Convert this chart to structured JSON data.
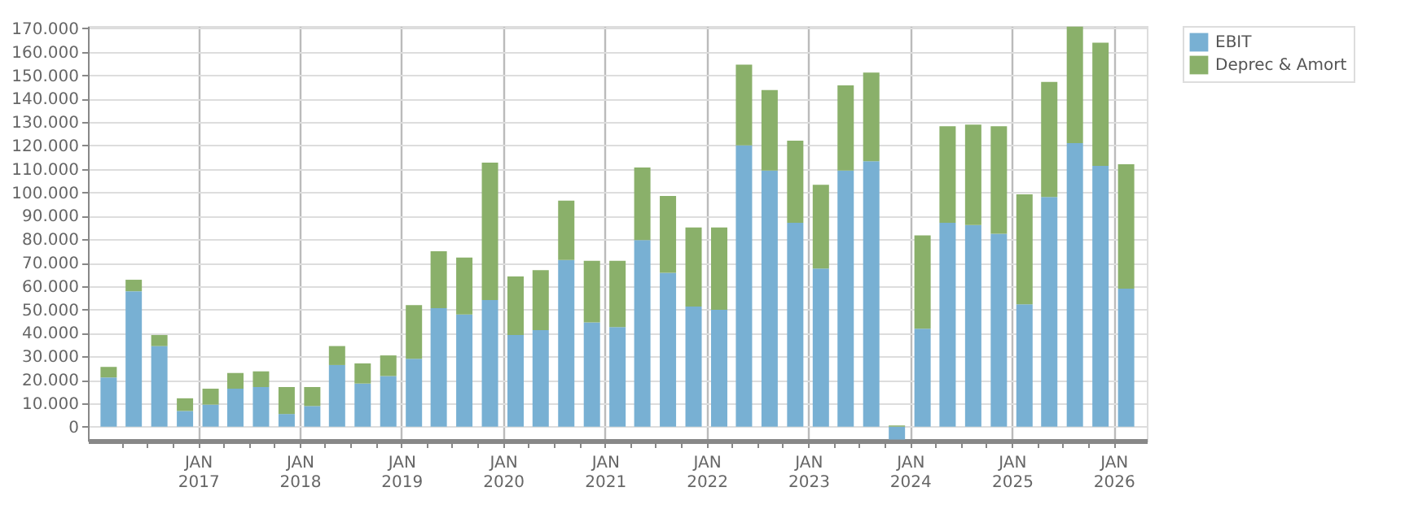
{
  "chart_data": {
    "type": "bar",
    "stacked": true,
    "x": [
      "2016-02-15",
      "2016-05-15",
      "2016-08-15",
      "2016-11-15",
      "2017-02-15",
      "2017-05-15",
      "2017-08-15",
      "2017-11-15",
      "2018-02-15",
      "2018-05-15",
      "2018-08-15",
      "2018-11-15",
      "2019-02-15",
      "2019-05-15",
      "2019-08-15",
      "2019-11-15",
      "2020-02-15",
      "2020-05-15",
      "2020-08-15",
      "2020-11-15",
      "2021-02-15",
      "2021-05-15",
      "2021-08-15",
      "2021-11-15",
      "2022-02-15",
      "2022-05-15",
      "2022-08-15",
      "2022-11-15",
      "2023-02-15",
      "2023-05-15",
      "2023-08-15",
      "2023-11-15",
      "2024-02-15",
      "2024-05-15",
      "2024-08-15",
      "2024-11-15",
      "2025-02-15",
      "2025-05-15",
      "2025-08-15",
      "2025-11-15",
      "2026-02-15"
    ],
    "series": [
      {
        "name": "EBIT",
        "color": "#78b0d3",
        "values": [
          21000,
          57800,
          34400,
          6700,
          9400,
          16200,
          16900,
          5400,
          8800,
          26300,
          18400,
          21600,
          29000,
          50600,
          47900,
          54000,
          39100,
          41200,
          71100,
          44500,
          42500,
          79600,
          65700,
          51300,
          49900,
          120100,
          109300,
          87000,
          67500,
          109300,
          113300,
          -5500,
          41800,
          87000,
          86100,
          82300,
          52200,
          98000,
          121000,
          111300,
          58900
        ]
      },
      {
        "name": "Deprec & Amort",
        "color": "#8ab06a",
        "values": [
          4500,
          4900,
          4700,
          5400,
          6800,
          6700,
          6700,
          11500,
          8100,
          8100,
          8600,
          8800,
          22900,
          24300,
          24300,
          58700,
          25000,
          25600,
          25400,
          26300,
          28300,
          31000,
          32800,
          33700,
          35100,
          34400,
          34400,
          35100,
          35700,
          36400,
          37800,
          500,
          39800,
          41200,
          42800,
          45900,
          47000,
          49100,
          49700,
          52600,
          53100
        ]
      }
    ],
    "xlim": [
      "2016-01-01",
      "2026-04-01"
    ],
    "xticks": [
      {
        "value": "2016-04-01",
        "label": null
      },
      {
        "value": "2016-07-01",
        "label": null
      },
      {
        "value": "2016-10-01",
        "label": null
      },
      {
        "value": "2017-01-01",
        "label": "JAN 2017"
      },
      {
        "value": "2017-04-01",
        "label": null
      },
      {
        "value": "2017-07-01",
        "label": null
      },
      {
        "value": "2017-10-01",
        "label": null
      },
      {
        "value": "2018-01-01",
        "label": "JAN 2018"
      },
      {
        "value": "2018-04-01",
        "label": null
      },
      {
        "value": "2018-07-01",
        "label": null
      },
      {
        "value": "2018-10-01",
        "label": null
      },
      {
        "value": "2019-01-01",
        "label": "JAN 2019"
      },
      {
        "value": "2019-04-01",
        "label": null
      },
      {
        "value": "2019-07-01",
        "label": null
      },
      {
        "value": "2019-10-01",
        "label": null
      },
      {
        "value": "2020-01-01",
        "label": "JAN 2020"
      },
      {
        "value": "2020-04-01",
        "label": null
      },
      {
        "value": "2020-07-01",
        "label": null
      },
      {
        "value": "2020-10-01",
        "label": null
      },
      {
        "value": "2021-01-01",
        "label": "JAN 2021"
      },
      {
        "value": "2021-04-01",
        "label": null
      },
      {
        "value": "2021-07-01",
        "label": null
      },
      {
        "value": "2021-10-01",
        "label": null
      },
      {
        "value": "2022-01-01",
        "label": "JAN 2022"
      },
      {
        "value": "2022-04-01",
        "label": null
      },
      {
        "value": "2022-07-01",
        "label": null
      },
      {
        "value": "2022-10-01",
        "label": null
      },
      {
        "value": "2023-01-01",
        "label": "JAN 2023"
      },
      {
        "value": "2023-04-01",
        "label": null
      },
      {
        "value": "2023-07-01",
        "label": null
      },
      {
        "value": "2023-10-01",
        "label": null
      },
      {
        "value": "2024-01-01",
        "label": "JAN 2024"
      },
      {
        "value": "2024-04-01",
        "label": null
      },
      {
        "value": "2024-07-01",
        "label": null
      },
      {
        "value": "2024-10-01",
        "label": null
      },
      {
        "value": "2025-01-01",
        "label": "JAN 2025"
      },
      {
        "value": "2025-04-01",
        "label": null
      },
      {
        "value": "2025-07-01",
        "label": null
      },
      {
        "value": "2025-10-01",
        "label": null
      },
      {
        "value": "2026-01-01",
        "label": "JAN 2026"
      }
    ],
    "ylim": [
      -6000,
      171000
    ],
    "yticks": [
      {
        "value": 0,
        "label": "0"
      },
      {
        "value": 10000,
        "label": "10.000"
      },
      {
        "value": 20000,
        "label": "20.000"
      },
      {
        "value": 30000,
        "label": "30.000"
      },
      {
        "value": 40000,
        "label": "40.000"
      },
      {
        "value": 50000,
        "label": "50.000"
      },
      {
        "value": 60000,
        "label": "60.000"
      },
      {
        "value": 70000,
        "label": "70.000"
      },
      {
        "value": 80000,
        "label": "80.000"
      },
      {
        "value": 90000,
        "label": "90.000"
      },
      {
        "value": 100000,
        "label": "100.000"
      },
      {
        "value": 110000,
        "label": "110.000"
      },
      {
        "value": 120000,
        "label": "120.000"
      },
      {
        "value": 130000,
        "label": "130.000"
      },
      {
        "value": 140000,
        "label": "140.000"
      },
      {
        "value": 150000,
        "label": "150.000"
      },
      {
        "value": 160000,
        "label": "160.000"
      },
      {
        "value": 170000,
        "label": "170.000"
      }
    ],
    "grid": true,
    "legend": "top right"
  }
}
